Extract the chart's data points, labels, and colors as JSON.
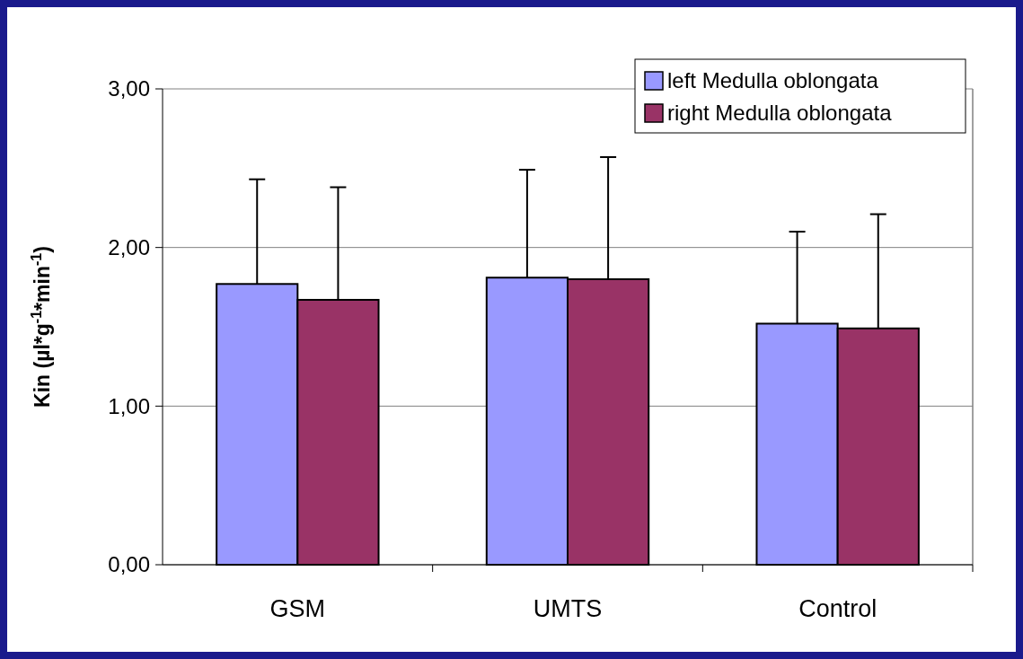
{
  "chart_data": {
    "type": "bar",
    "ylabel": "Kin (µl*g$^{-1}$*min$^{-1}$)",
    "categories": [
      "GSM",
      "UMTS",
      "Control"
    ],
    "series": [
      {
        "name": "left Medulla oblongata",
        "color": "#9999ff",
        "values": [
          1.77,
          1.81,
          1.52
        ],
        "errors": [
          [
            1.77,
            2.43
          ],
          [
            1.81,
            2.49
          ],
          [
            1.52,
            2.1
          ]
        ]
      },
      {
        "name": "right Medulla oblongata",
        "color": "#993366",
        "values": [
          1.67,
          1.8,
          1.49
        ],
        "errors": [
          [
            1.67,
            2.38
          ],
          [
            1.8,
            2.57
          ],
          [
            1.49,
            2.21
          ]
        ]
      }
    ],
    "ylim": [
      0,
      3
    ],
    "yticks": [
      {
        "value": 0,
        "label": "0,00"
      },
      {
        "value": 1,
        "label": "1,00"
      },
      {
        "value": 2,
        "label": "2,00"
      },
      {
        "value": 3,
        "label": "3,00"
      }
    ],
    "grid": "y",
    "legend": "top right"
  }
}
